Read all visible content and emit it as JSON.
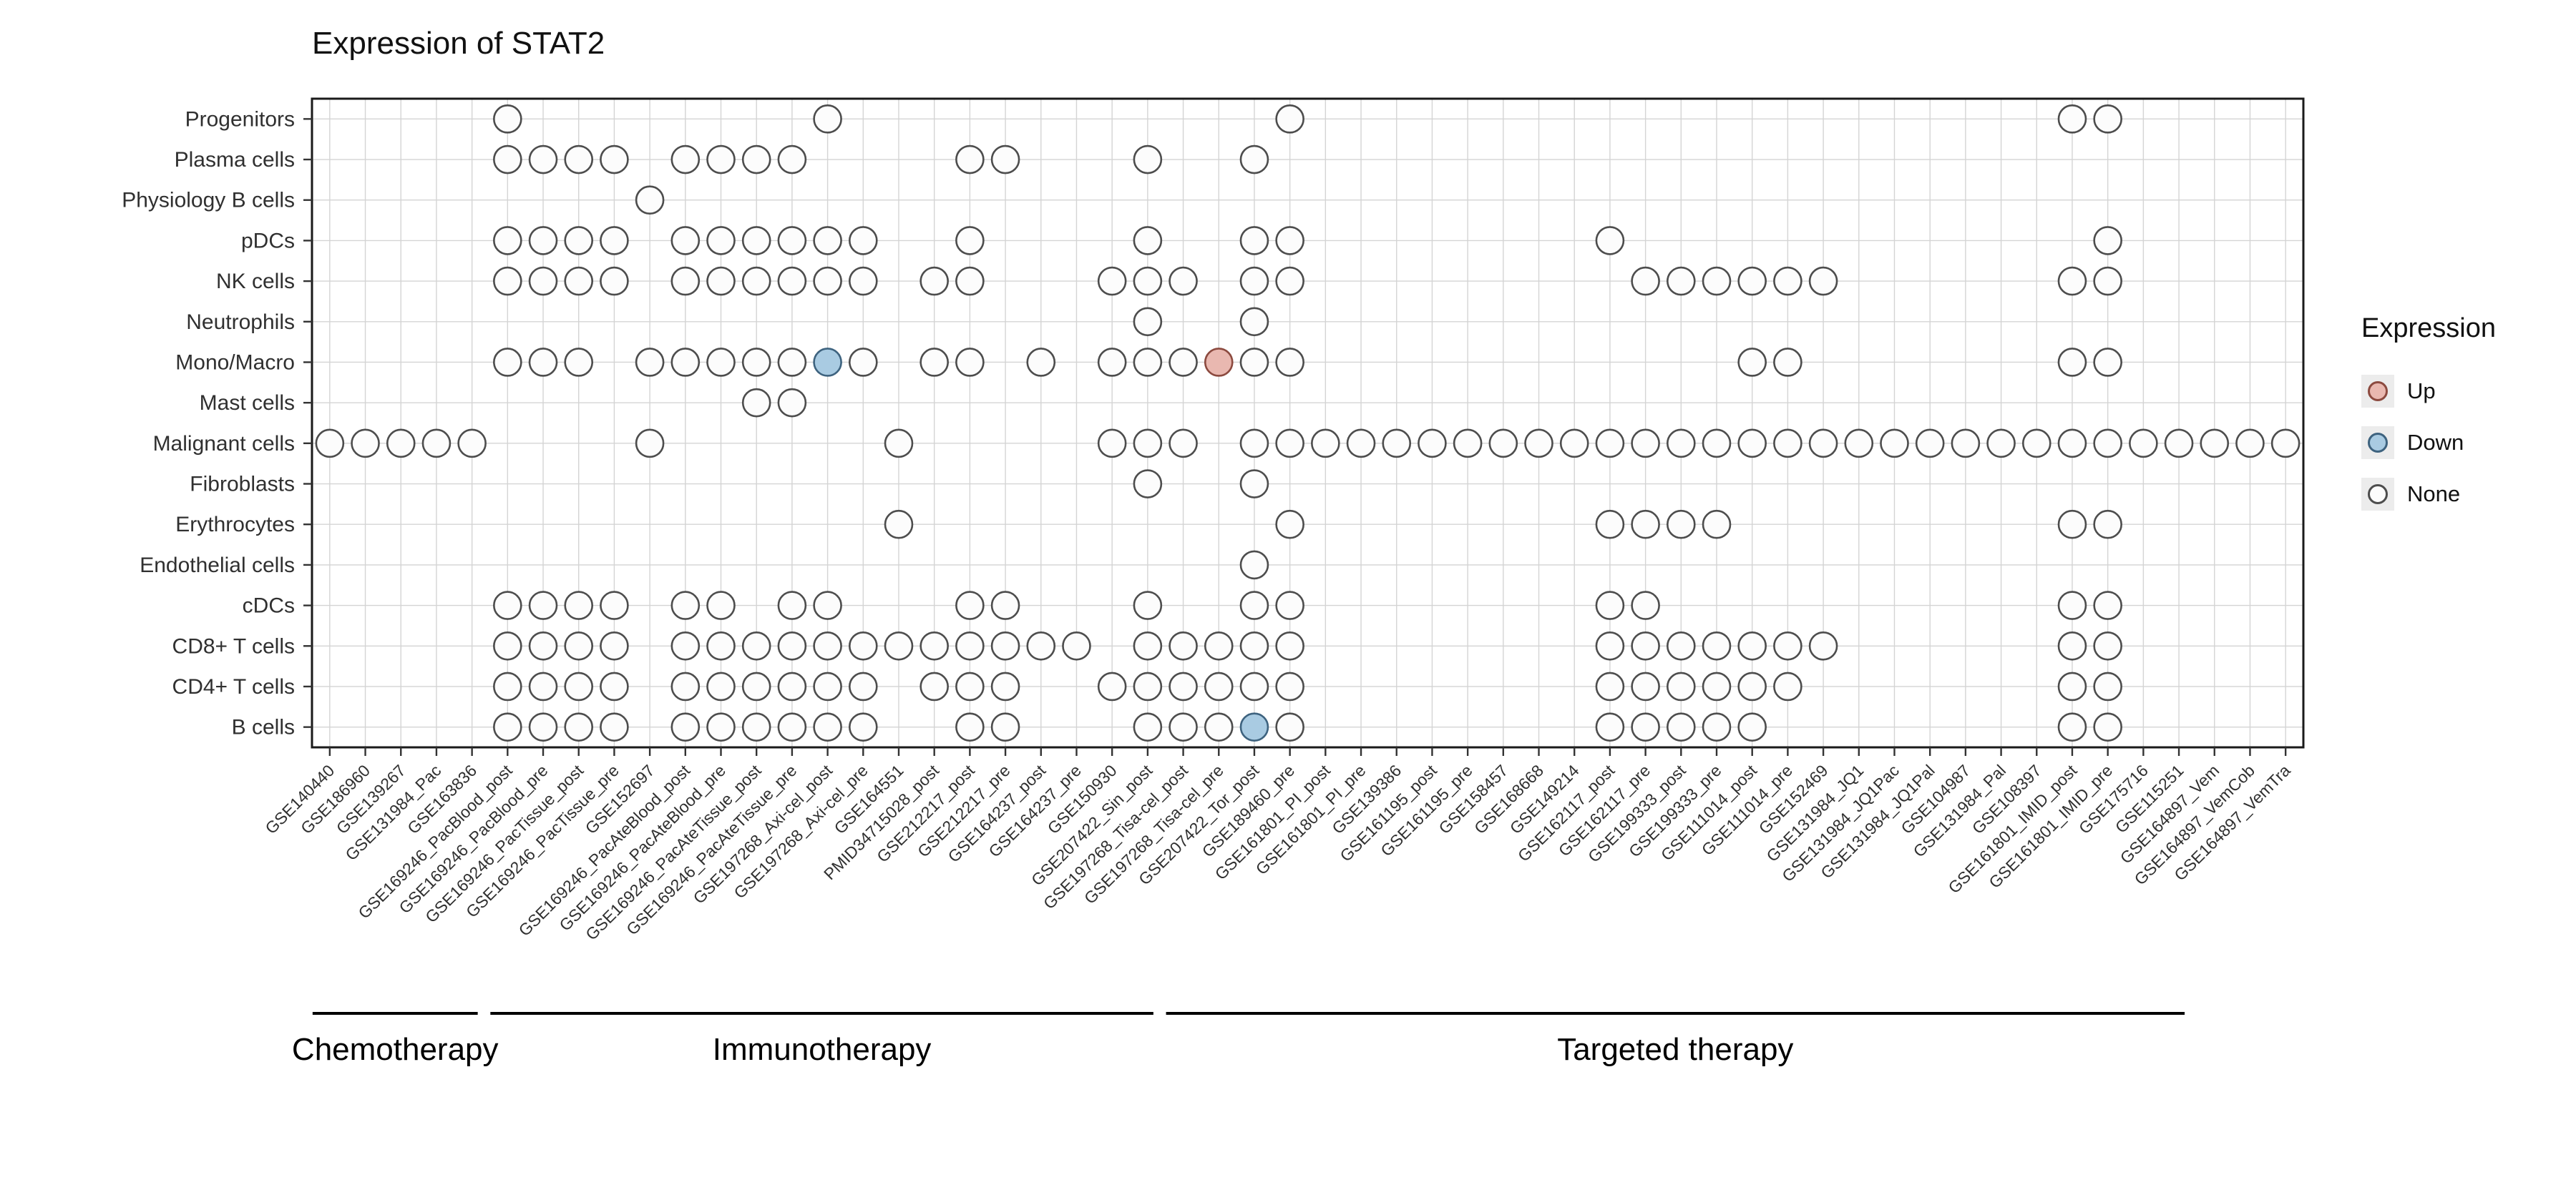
{
  "title": "Expression of STAT2",
  "legend": {
    "title": "Expression",
    "items": [
      {
        "label": "Up",
        "fill": "#e9b8b0",
        "stroke": "#8c4a3f"
      },
      {
        "label": "Down",
        "fill": "#a9cbe2",
        "stroke": "#3e637f"
      },
      {
        "label": "None",
        "fill": "#fcfcfc",
        "stroke": "#4d4d4d"
      }
    ]
  },
  "chart_data": {
    "type": "heatmap",
    "title": "Expression of STAT2",
    "legend_title": "Expression",
    "value_domain": [
      "Up",
      "Down",
      "None"
    ],
    "rows": [
      "Progenitors",
      "Plasma cells",
      "Physiology B cells",
      "pDCs",
      "NK cells",
      "Neutrophils",
      "Mono/Macro",
      "Mast cells",
      "Malignant cells",
      "Fibroblasts",
      "Erythrocytes",
      "Endothelial cells",
      "cDCs",
      "CD8+ T cells",
      "CD4+ T cells",
      "B cells"
    ],
    "columns": [
      "GSE140440",
      "GSE186960",
      "GSE139267",
      "GSE131984_Pac",
      "GSE163836",
      "GSE169246_PacBlood_post",
      "GSE169246_PacBlood_pre",
      "GSE169246_PacTissue_post",
      "GSE169246_PacTissue_pre",
      "GSE152697",
      "GSE169246_PacAteBlood_post",
      "GSE169246_PacAteBlood_pre",
      "GSE169246_PacAteTissue_post",
      "GSE169246_PacAteTissue_pre",
      "GSE197268_Axi-cel_post",
      "GSE197268_Axi-cel_pre",
      "GSE164551",
      "PMID34715028_post",
      "GSE212217_post",
      "GSE212217_pre",
      "GSE164237_post",
      "GSE164237_pre",
      "GSE150930",
      "GSE207422_Sin_post",
      "GSE197268_Tisa-cel_post",
      "GSE197268_Tisa-cel_pre",
      "GSE207422_Tor_post",
      "GSE189460_pre",
      "GSE161801_PI_post",
      "GSE161801_PI_pre",
      "GSE139386",
      "GSE161195_post",
      "GSE161195_pre",
      "GSE158457",
      "GSE168668",
      "GSE149214",
      "GSE162117_post",
      "GSE162117_pre",
      "GSE199333_post",
      "GSE199333_pre",
      "GSE111014_post",
      "GSE111014_pre",
      "GSE152469",
      "GSE131984_JQ1",
      "GSE131984_JQ1Pac",
      "GSE131984_JQ1Pal",
      "GSE104987",
      "GSE131984_Pal",
      "GSE108397",
      "GSE161801_IMID_post",
      "GSE161801_IMID_pre",
      "GSE175716",
      "GSE115251",
      "GSE164897_Vem",
      "GSE164897_VemCob",
      "GSE164897_VemTra"
    ],
    "presence": {
      "Progenitors": [
        5,
        14,
        27,
        49,
        50
      ],
      "Plasma cells": [
        5,
        6,
        7,
        8,
        10,
        11,
        12,
        13,
        18,
        19,
        23,
        26
      ],
      "Physiology B cells": [
        9
      ],
      "pDCs": [
        5,
        6,
        7,
        8,
        10,
        11,
        12,
        13,
        14,
        15,
        18,
        23,
        26,
        27,
        36,
        50
      ],
      "NK cells": [
        5,
        6,
        7,
        8,
        10,
        11,
        12,
        13,
        14,
        15,
        17,
        18,
        22,
        23,
        24,
        26,
        27,
        37,
        38,
        39,
        40,
        41,
        42,
        49,
        50
      ],
      "Neutrophils": [
        23,
        26
      ],
      "Mono/Macro": [
        5,
        6,
        7,
        9,
        10,
        11,
        12,
        13,
        14,
        15,
        17,
        18,
        20,
        22,
        23,
        24,
        25,
        26,
        27,
        40,
        41,
        49,
        50
      ],
      "Mast cells": [
        12,
        13
      ],
      "Malignant cells": [
        0,
        1,
        2,
        3,
        4,
        9,
        16,
        22,
        23,
        24,
        26,
        27,
        28,
        29,
        30,
        31,
        32,
        33,
        34,
        35,
        36,
        37,
        38,
        39,
        40,
        41,
        42,
        43,
        44,
        45,
        46,
        47,
        48,
        49,
        50,
        51,
        52,
        53,
        54,
        55
      ],
      "Fibroblasts": [
        23,
        26
      ],
      "Erythrocytes": [
        16,
        27,
        36,
        37,
        38,
        39,
        49,
        50
      ],
      "Endothelial cells": [
        26
      ],
      "cDCs": [
        5,
        6,
        7,
        8,
        10,
        11,
        13,
        14,
        18,
        19,
        23,
        26,
        27,
        36,
        37,
        49,
        50
      ],
      "CD8+ T cells": [
        5,
        6,
        7,
        8,
        10,
        11,
        12,
        13,
        14,
        15,
        16,
        17,
        18,
        19,
        20,
        21,
        23,
        24,
        25,
        26,
        27,
        36,
        37,
        38,
        39,
        40,
        41,
        42,
        49,
        50
      ],
      "CD4+ T cells": [
        5,
        6,
        7,
        8,
        10,
        11,
        12,
        13,
        14,
        15,
        17,
        18,
        19,
        22,
        23,
        24,
        25,
        26,
        27,
        36,
        37,
        38,
        39,
        40,
        41,
        49,
        50
      ],
      "B cells": [
        5,
        6,
        7,
        8,
        10,
        11,
        12,
        13,
        14,
        15,
        18,
        19,
        23,
        24,
        25,
        26,
        27,
        36,
        37,
        38,
        39,
        40,
        49,
        50
      ]
    },
    "special": [
      {
        "row": "Mono/Macro",
        "column": "GSE197268_Axi-cel_post",
        "value": "Down"
      },
      {
        "row": "Mono/Macro",
        "column": "GSE197268_Tisa-cel_pre",
        "value": "Up"
      },
      {
        "row": "B cells",
        "column": "GSE207422_Tor_post",
        "value": "Down"
      }
    ],
    "groups": [
      {
        "label": "Chemotherapy",
        "col_start": 0,
        "col_end": 4
      },
      {
        "label": "Immunotherapy",
        "col_start": 5,
        "col_end": 23
      },
      {
        "label": "Targeted therapy",
        "col_start": 24,
        "col_end": 52
      }
    ]
  }
}
